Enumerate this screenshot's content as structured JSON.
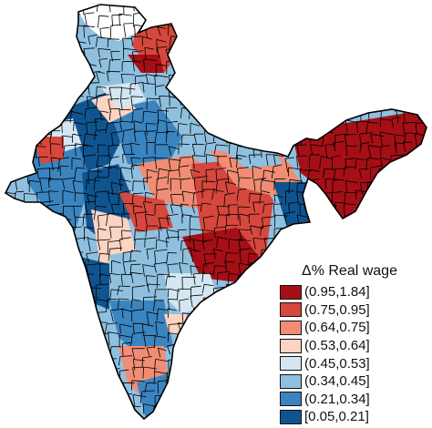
{
  "legend": {
    "title": "Δ% Real wage",
    "bins": [
      {
        "label": "(0.95,1.84]",
        "color": "#a50f15"
      },
      {
        "label": "(0.75,0.95]",
        "color": "#d6473d"
      },
      {
        "label": "(0.64,0.75]",
        "color": "#f08d74"
      },
      {
        "label": "(0.53,0.64]",
        "color": "#fdd4c2"
      },
      {
        "label": "(0.45,0.53]",
        "color": "#d4e6f2"
      },
      {
        "label": "(0.34,0.45]",
        "color": "#8fc0df"
      },
      {
        "label": "(0.21,0.34]",
        "color": "#3a84c0"
      },
      {
        "label": "[0.05,0.21]",
        "color": "#10548f"
      }
    ]
  },
  "map": {
    "no_data_color": "#ffffff",
    "border_color": "#000000"
  }
}
